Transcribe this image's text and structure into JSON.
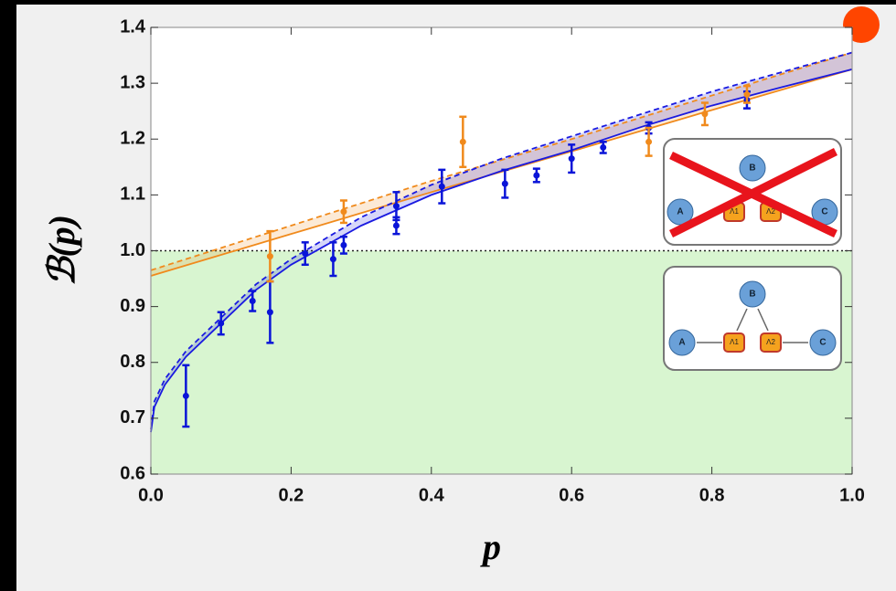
{
  "chart_data": {
    "type": "scatter",
    "xlabel": "p",
    "ylabel": "ℬ(p)",
    "xlim": [
      0,
      1
    ],
    "ylim": [
      0.6,
      1.4
    ],
    "xticks": [
      {
        "value": 0,
        "label": "0.0"
      },
      0.2,
      0.4,
      0.6,
      0.8,
      {
        "value": 1,
        "label": "1.0"
      }
    ],
    "yticks": [
      0.6,
      0.7,
      0.8,
      0.9,
      {
        "value": 1,
        "label": "1.0"
      },
      1.1,
      1.2,
      1.3,
      1.4
    ],
    "threshold": 1,
    "threshold_fill": "#d8f5d0",
    "points": [
      {
        "color": "#0a14d8",
        "x": [
          0.05,
          0.1,
          0.145,
          0.17,
          0.22,
          0.26,
          0.275,
          0.35,
          0.35,
          0.415,
          0.505,
          0.55,
          0.6,
          0.645,
          0.71,
          0.85
        ],
        "values": [
          0.74,
          0.87,
          0.91,
          0.89,
          0.995,
          0.985,
          1.01,
          1.045,
          1.08,
          1.115,
          1.12,
          1.135,
          1.165,
          1.185,
          1.22,
          1.27
        ],
        "errors": [
          0.055,
          0.02,
          0.018,
          0.055,
          0.02,
          0.03,
          0.015,
          0.015,
          0.025,
          0.03,
          0.025,
          0.012,
          0.025,
          0.01,
          0.01,
          0.015
        ]
      },
      {
        "color": "#f08a1c",
        "x": [
          0.17,
          0.275,
          0.445,
          0.71,
          0.79,
          0.85
        ],
        "values": [
          0.99,
          1.07,
          1.195,
          1.195,
          1.245,
          1.28
        ],
        "errors": [
          0.045,
          0.02,
          0.045,
          0.025,
          0.02,
          0.015
        ]
      }
    ],
    "curves": [
      {
        "color": "#f08a1c",
        "style": "solid",
        "x": [
          0,
          0.2,
          0.4,
          0.6,
          0.8,
          1
        ],
        "values": [
          0.955,
          1.03,
          1.105,
          1.178,
          1.252,
          1.325
        ]
      },
      {
        "color": "#f08a1c",
        "style": "dashed",
        "x": [
          0,
          0.2,
          0.4,
          0.6,
          0.8,
          1
        ],
        "values": [
          0.965,
          1.045,
          1.125,
          1.2,
          1.278,
          1.355
        ]
      },
      {
        "color": "#1a1ae0",
        "style": "solid",
        "x": [
          0,
          0.005,
          0.02,
          0.05,
          0.1,
          0.15,
          0.2,
          0.3,
          0.4,
          0.5,
          0.6,
          0.7,
          0.8,
          0.9,
          1
        ],
        "values": [
          0.675,
          0.72,
          0.76,
          0.81,
          0.87,
          0.93,
          0.975,
          1.045,
          1.1,
          1.143,
          1.18,
          1.222,
          1.26,
          1.293,
          1.325
        ]
      },
      {
        "color": "#1a1ae0",
        "style": "dashed",
        "x": [
          0,
          0.005,
          0.02,
          0.05,
          0.1,
          0.15,
          0.2,
          0.3,
          0.4,
          0.5,
          0.6,
          0.7,
          0.8,
          0.9,
          1
        ],
        "values": [
          0.68,
          0.73,
          0.77,
          0.82,
          0.88,
          0.94,
          0.985,
          1.06,
          1.118,
          1.165,
          1.205,
          1.245,
          1.285,
          1.32,
          1.355
        ]
      }
    ],
    "inset_nodes": [
      "A",
      "B",
      "C",
      "Λ1",
      "Λ2"
    ]
  }
}
